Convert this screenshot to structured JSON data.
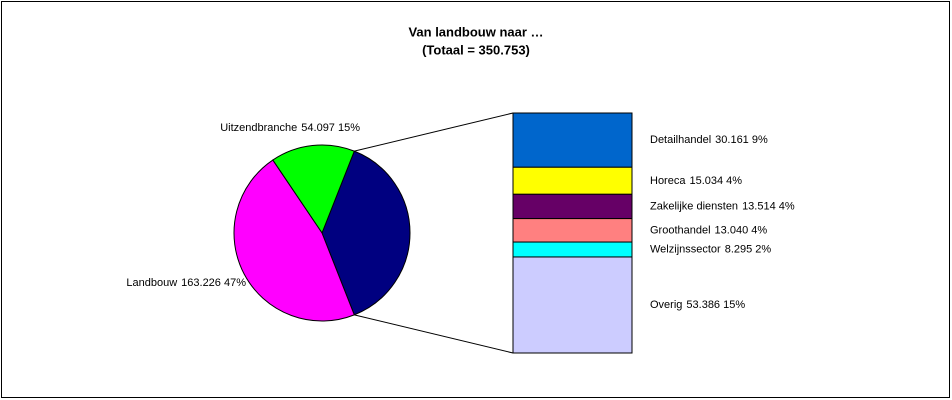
{
  "chart_data": {
    "type": "bar-of-pie",
    "title": "Van landbouw naar …",
    "subtitle": "(Totaal = 350.753)",
    "categories": [
      null,
      "Uitzendbranche",
      "Landbouw"
    ],
    "values": [
      133430,
      54097,
      163226
    ],
    "value_labels": [
      null,
      "54.097 15%",
      "163.226 47%"
    ],
    "colors": [
      "#000080",
      "#00ff00",
      "#ff00ff"
    ],
    "bar": {
      "categories": [
        "Detailhandel",
        "Horeca",
        "Zakelijke diensten",
        "Groothandel",
        "Welzijnssector",
        "Overig"
      ],
      "values": [
        30161,
        15034,
        13514,
        13040,
        8295,
        53386
      ],
      "value_labels": [
        "30.161 9%",
        "15.034 4%",
        "13.514 4%",
        "13.040 4%",
        "8.295 2%",
        "53.386 15%"
      ],
      "colors": [
        "#0066cc",
        "#ffff00",
        "#660066",
        "#ff8080",
        "#00ffff",
        "#ccccff"
      ]
    }
  }
}
